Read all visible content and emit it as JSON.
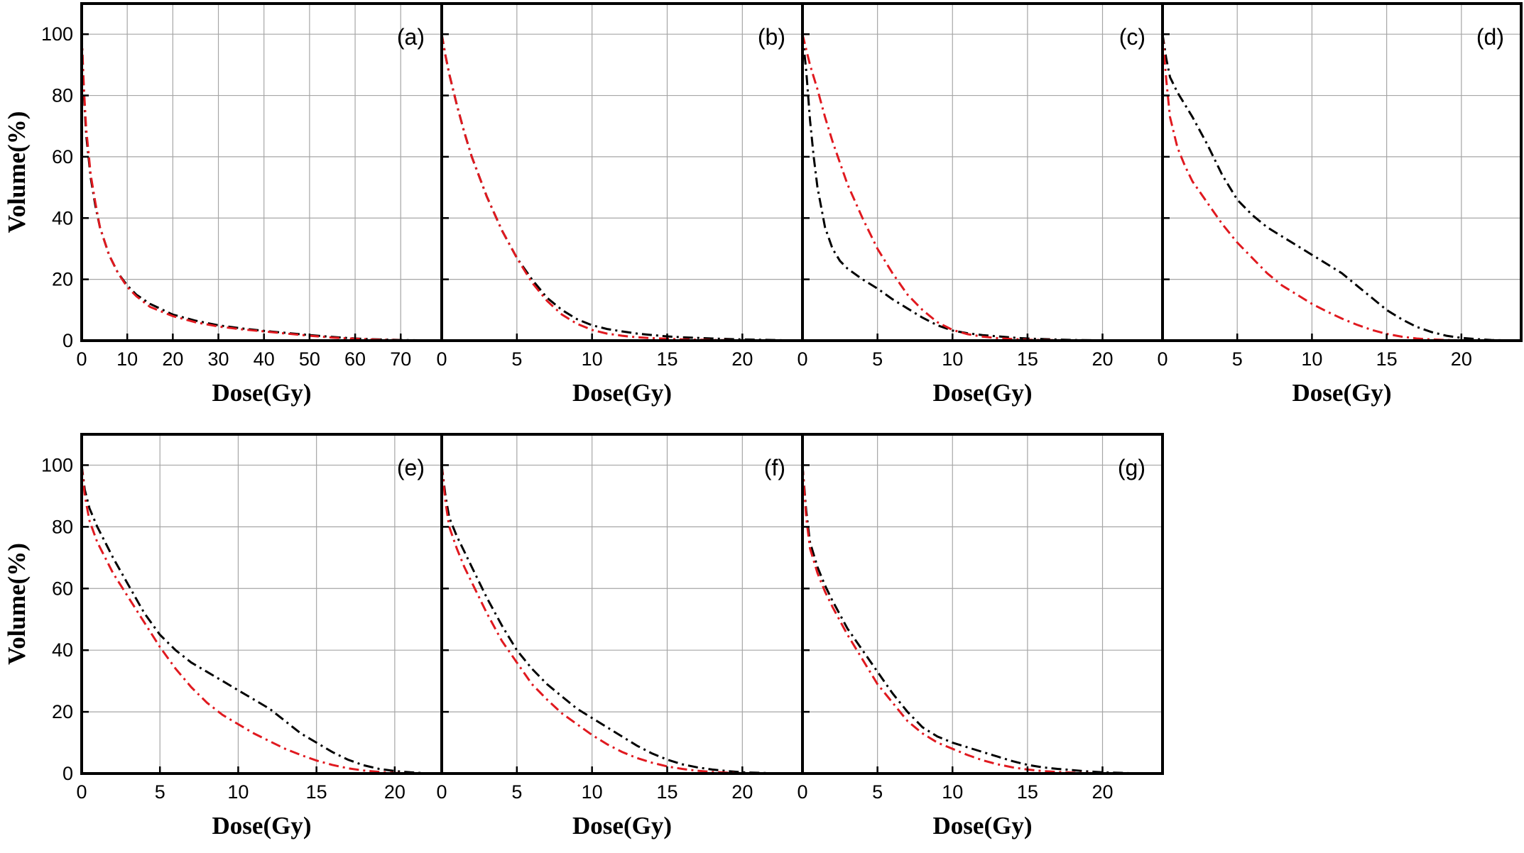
{
  "colors": {
    "series_black": "#000000",
    "series_red": "#e0191f",
    "grid": "#a6a6a6"
  },
  "chart_data": [
    {
      "id": "a",
      "type": "line",
      "panel_label": "(a)",
      "xlabel": "Dose(Gy)",
      "ylabel": "Volume(%)",
      "xlim": [
        0,
        79
      ],
      "ylim": [
        0,
        110
      ],
      "grid": true,
      "xticks": [
        0,
        10,
        20,
        30,
        40,
        50,
        60,
        70
      ],
      "yticks": [
        0,
        20,
        40,
        60,
        80,
        100
      ],
      "series": [
        {
          "color": "black",
          "x": [
            0,
            0.5,
            1,
            2,
            3,
            4,
            6,
            8,
            10,
            12,
            15,
            20,
            25,
            30,
            35,
            40,
            45,
            50,
            55,
            60,
            65,
            70,
            75,
            79
          ],
          "y": [
            100,
            80,
            67,
            53,
            44,
            37,
            28,
            22,
            18,
            15,
            12,
            8.5,
            6.5,
            5,
            4,
            3.2,
            2.5,
            1.8,
            1.2,
            0.7,
            0.4,
            0.2,
            0.1,
            0
          ]
        },
        {
          "color": "red",
          "x": [
            0,
            0.5,
            1,
            2,
            3,
            4,
            6,
            8,
            10,
            12,
            15,
            20,
            25,
            30,
            35,
            40,
            45,
            50,
            55,
            60,
            65,
            70,
            75,
            79
          ],
          "y": [
            100,
            82,
            69,
            54,
            45,
            37,
            28,
            22,
            17.5,
            14.5,
            11,
            8,
            6,
            4.6,
            3.7,
            3,
            2.3,
            1.6,
            1,
            0.6,
            0.3,
            0.15,
            0.05,
            0
          ]
        }
      ]
    },
    {
      "id": "b",
      "type": "line",
      "panel_label": "(b)",
      "xlabel": "Dose(Gy)",
      "ylabel": "",
      "xlim": [
        0,
        24
      ],
      "ylim": [
        0,
        110
      ],
      "grid": true,
      "xticks": [
        0,
        5,
        10,
        15,
        20
      ],
      "yticks": [
        0,
        20,
        40,
        60,
        80,
        100
      ],
      "series": [
        {
          "color": "black",
          "x": [
            0,
            0.25,
            0.5,
            1,
            1.5,
            2,
            3,
            4,
            5,
            6,
            7,
            8,
            9,
            10,
            11,
            12,
            13,
            14,
            15,
            16,
            18,
            20,
            22,
            24
          ],
          "y": [
            100,
            93,
            87,
            77,
            68,
            60,
            47,
            36,
            27,
            20,
            14,
            10,
            7,
            5,
            3.8,
            3,
            2.3,
            1.8,
            1.4,
            1.1,
            0.7,
            0.4,
            0.2,
            0
          ]
        },
        {
          "color": "red",
          "x": [
            0,
            0.25,
            0.5,
            1,
            1.5,
            2,
            3,
            4,
            5,
            6,
            7,
            8,
            9,
            10,
            11,
            12,
            13,
            14,
            15,
            16,
            18,
            20,
            22,
            24
          ],
          "y": [
            100,
            93,
            87,
            77,
            68,
            60,
            47,
            36,
            27,
            19,
            13,
            8.5,
            5.5,
            3.5,
            2.3,
            1.6,
            1.1,
            0.8,
            0.6,
            0.4,
            0.2,
            0.1,
            0.05,
            0
          ]
        }
      ]
    },
    {
      "id": "c",
      "type": "line",
      "panel_label": "(c)",
      "xlabel": "Dose(Gy)",
      "ylabel": "",
      "xlim": [
        0,
        24
      ],
      "ylim": [
        0,
        110
      ],
      "grid": true,
      "xticks": [
        0,
        5,
        10,
        15,
        20
      ],
      "yticks": [
        0,
        20,
        40,
        60,
        80,
        100
      ],
      "series": [
        {
          "color": "black",
          "x": [
            0,
            0.25,
            0.5,
            0.75,
            1,
            1.5,
            2,
            2.5,
            3,
            4,
            5,
            6,
            7,
            8,
            9,
            10,
            11,
            12,
            13,
            14,
            15,
            16,
            18,
            20,
            22,
            24
          ],
          "y": [
            100,
            88,
            72,
            60,
            50,
            37,
            30,
            26,
            23.5,
            20,
            17,
            13.5,
            10.5,
            7.5,
            5,
            3.3,
            2.4,
            1.8,
            1.4,
            1,
            0.7,
            0.5,
            0.2,
            0.1,
            0.05,
            0
          ]
        },
        {
          "color": "red",
          "x": [
            0,
            0.25,
            0.5,
            0.75,
            1,
            1.5,
            2,
            2.5,
            3,
            4,
            5,
            6,
            7,
            8,
            9,
            10,
            11,
            12,
            13,
            14,
            15,
            16,
            18,
            20,
            22,
            24
          ],
          "y": [
            100,
            95,
            90,
            86,
            82,
            73,
            65,
            58,
            51,
            40,
            30,
            22,
            15,
            10,
            6,
            3.5,
            2.1,
            1.3,
            0.8,
            0.5,
            0.3,
            0.2,
            0.1,
            0.05,
            0,
            0
          ]
        }
      ]
    },
    {
      "id": "d",
      "type": "line",
      "panel_label": "(d)",
      "xlabel": "Dose(Gy)",
      "ylabel": "",
      "xlim": [
        0,
        24
      ],
      "ylim": [
        0,
        110
      ],
      "grid": true,
      "xticks": [
        0,
        5,
        10,
        15,
        20
      ],
      "yticks": [
        0,
        20,
        40,
        60,
        80,
        100
      ],
      "series": [
        {
          "color": "black",
          "x": [
            0,
            0.25,
            0.5,
            1,
            1.5,
            2,
            3,
            4,
            5,
            6,
            7,
            8,
            9,
            10,
            11,
            12,
            13,
            14,
            15,
            16,
            17,
            18,
            19,
            20,
            21,
            22,
            24
          ],
          "y": [
            100,
            92,
            86,
            81,
            77,
            73,
            64,
            54,
            46,
            41,
            37,
            34,
            31,
            28,
            25,
            22,
            18,
            14,
            10,
            7,
            4.5,
            2.8,
            1.6,
            0.9,
            0.5,
            0.2,
            0
          ]
        },
        {
          "color": "red",
          "x": [
            0,
            0.25,
            0.5,
            1,
            1.5,
            2,
            3,
            4,
            5,
            6,
            7,
            8,
            9,
            10,
            11,
            12,
            13,
            14,
            15,
            16,
            17,
            18,
            19,
            20,
            22,
            24
          ],
          "y": [
            100,
            85,
            73,
            63,
            57,
            52,
            45,
            38,
            32,
            27,
            22,
            18,
            15,
            12,
            9.5,
            7.2,
            5.2,
            3.5,
            2.2,
            1.3,
            0.7,
            0.4,
            0.2,
            0.1,
            0,
            0
          ]
        }
      ]
    },
    {
      "id": "e",
      "type": "line",
      "panel_label": "(e)",
      "xlabel": "Dose(Gy)",
      "ylabel": "Volume(%)",
      "xlim": [
        0,
        23
      ],
      "ylim": [
        0,
        110
      ],
      "grid": true,
      "xticks": [
        0,
        5,
        10,
        15,
        20
      ],
      "yticks": [
        0,
        20,
        40,
        60,
        80,
        100
      ],
      "series": [
        {
          "color": "black",
          "x": [
            0,
            0.2,
            0.5,
            1,
            1.5,
            2,
            3,
            4,
            5,
            6,
            7,
            8,
            9,
            10,
            11,
            12,
            13,
            14,
            15,
            16,
            17,
            18,
            19,
            20,
            21,
            22,
            23
          ],
          "y": [
            100,
            92,
            86,
            80,
            75,
            70,
            61,
            52,
            45,
            40,
            36,
            33,
            30,
            27,
            24,
            21,
            17,
            13,
            10,
            7,
            4.5,
            2.7,
            1.5,
            0.8,
            0.4,
            0.1,
            0
          ]
        },
        {
          "color": "red",
          "x": [
            0,
            0.2,
            0.5,
            1,
            1.5,
            2,
            3,
            4,
            5,
            6,
            7,
            8,
            9,
            10,
            11,
            12,
            13,
            14,
            15,
            16,
            17,
            18,
            19,
            20,
            21,
            22,
            23
          ],
          "y": [
            100,
            90,
            82,
            75,
            70,
            65,
            57,
            49,
            41,
            34,
            28,
            23,
            19,
            16,
            13,
            10.5,
            8,
            6,
            4.2,
            2.8,
            1.7,
            1,
            0.5,
            0.2,
            0.1,
            0,
            0
          ]
        }
      ]
    },
    {
      "id": "f",
      "type": "line",
      "panel_label": "(f)",
      "xlabel": "Dose(Gy)",
      "ylabel": "",
      "xlim": [
        0,
        24
      ],
      "ylim": [
        0,
        110
      ],
      "grid": true,
      "xticks": [
        0,
        5,
        10,
        15,
        20
      ],
      "yticks": [
        0,
        20,
        40,
        60,
        80,
        100
      ],
      "series": [
        {
          "color": "black",
          "x": [
            0,
            0.25,
            0.5,
            1,
            1.5,
            2,
            3,
            4,
            5,
            6,
            7,
            8,
            9,
            10,
            11,
            12,
            13,
            14,
            15,
            16,
            17,
            18,
            19,
            20,
            22,
            24
          ],
          "y": [
            100,
            90,
            83,
            77,
            72,
            67,
            57,
            48,
            40,
            34,
            29,
            25,
            21,
            18,
            15,
            12,
            9,
            6.5,
            4.5,
            3,
            2,
            1.3,
            0.8,
            0.4,
            0.1,
            0
          ]
        },
        {
          "color": "red",
          "x": [
            0,
            0.25,
            0.5,
            1,
            1.5,
            2,
            3,
            4,
            5,
            6,
            7,
            8,
            9,
            10,
            11,
            12,
            13,
            14,
            15,
            16,
            17,
            18,
            19,
            20,
            22,
            24
          ],
          "y": [
            100,
            88,
            80,
            73,
            67,
            62,
            52,
            43,
            36,
            29,
            24,
            19.5,
            16,
            12.5,
            9.5,
            7,
            5,
            3.5,
            2.3,
            1.5,
            0.9,
            0.5,
            0.3,
            0.1,
            0,
            0
          ]
        }
      ]
    },
    {
      "id": "g",
      "type": "line",
      "panel_label": "(g)",
      "xlabel": "Dose(Gy)",
      "ylabel": "",
      "xlim": [
        0,
        24
      ],
      "ylim": [
        0,
        110
      ],
      "grid": true,
      "xticks": [
        0,
        5,
        10,
        15,
        20
      ],
      "yticks": [
        0,
        20,
        40,
        60,
        80,
        100
      ],
      "series": [
        {
          "color": "black",
          "x": [
            0,
            0.25,
            0.5,
            1,
            1.5,
            2,
            3,
            4,
            5,
            6,
            7,
            8,
            9,
            10,
            11,
            12,
            13,
            14,
            15,
            16,
            17,
            18,
            19,
            20,
            22,
            24
          ],
          "y": [
            100,
            85,
            75,
            67,
            61,
            56,
            47,
            40,
            33,
            26,
            20,
            15,
            12,
            10,
            8.5,
            7,
            5.5,
            4,
            2.8,
            2,
            1.5,
            1.1,
            0.7,
            0.4,
            0.1,
            0
          ]
        },
        {
          "color": "red",
          "x": [
            0,
            0.25,
            0.5,
            1,
            1.5,
            2,
            3,
            4,
            5,
            6,
            7,
            8,
            9,
            10,
            11,
            12,
            13,
            14,
            15,
            16,
            17,
            18,
            19,
            20,
            22,
            24
          ],
          "y": [
            100,
            83,
            73,
            65,
            59,
            54,
            45,
            37,
            29,
            23,
            17,
            13,
            10,
            8,
            6,
            4.3,
            3,
            2,
            1.3,
            0.8,
            0.5,
            0.3,
            0.15,
            0.05,
            0,
            0
          ]
        }
      ]
    }
  ]
}
